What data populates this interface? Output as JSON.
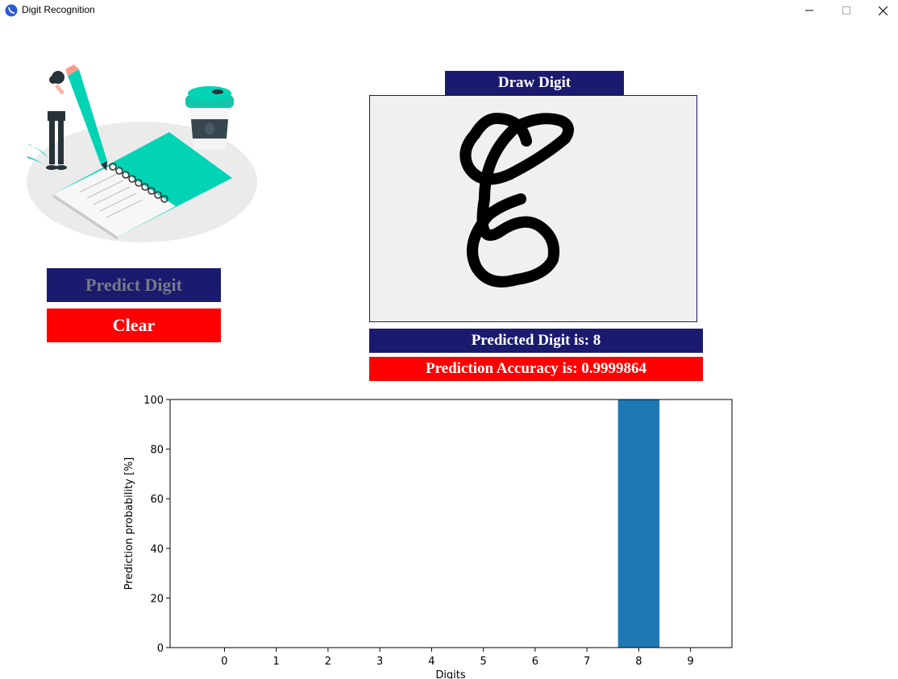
{
  "window": {
    "title": "Digit Recognition",
    "controls": [
      "minimize",
      "maximize",
      "close"
    ]
  },
  "buttons": {
    "predict_label": "Predict Digit",
    "clear_label": "Clear"
  },
  "canvas": {
    "label": "Draw Digit",
    "drawn_content": "handwritten 8"
  },
  "results": {
    "predicted_text": "Predicted Digit is: 8",
    "accuracy_text": "Prediction Accuracy is: 0.9999864"
  },
  "colors": {
    "navy": "#1a1a6e",
    "red": "#ff0000",
    "bar": "#1f77b4",
    "canvas_bg": "#f0f0f0"
  },
  "chart_data": {
    "type": "bar",
    "categories": [
      "0",
      "1",
      "2",
      "3",
      "4",
      "5",
      "6",
      "7",
      "8",
      "9"
    ],
    "values": [
      0,
      0,
      0,
      0,
      0,
      0,
      0,
      0,
      99.99864,
      0
    ],
    "xlabel": "Digits",
    "ylabel": "Prediction probability [%]",
    "ylim": [
      0,
      100
    ],
    "yticks": [
      "0",
      "20",
      "40",
      "60",
      "80",
      "100"
    ],
    "grid": false
  }
}
